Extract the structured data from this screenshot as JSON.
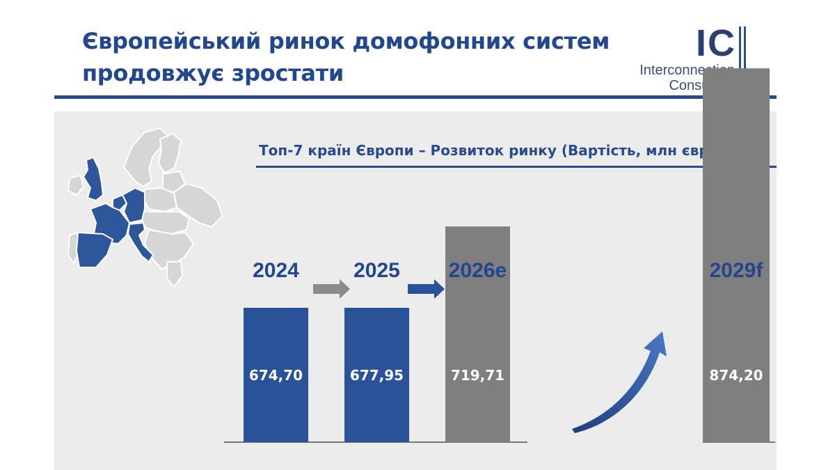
{
  "header": {
    "title_line1": "Європейський ринок домофонних систем",
    "title_line2": "продовжує зростати"
  },
  "logo": {
    "mark": "IC",
    "line1": "Interconnection",
    "line2": "Consulting"
  },
  "colors": {
    "accent": "#264b8f",
    "bar_actual": "#2a5298",
    "bar_forecast": "#7f7f7f",
    "panel": "#ececec",
    "map_land": "#d6d6d6",
    "map_highlight": "#2d579a"
  },
  "map": {
    "icon": "europe-map-icon",
    "highlighted_countries": [
      "United Kingdom",
      "France",
      "Germany",
      "Spain",
      "Italy",
      "Belgium",
      "Netherlands"
    ]
  },
  "chart_data": {
    "type": "bar",
    "title": "Топ-7 країн Європи – Розвиток ринку (Вартість, млн євро)",
    "categories": [
      "2024",
      "2025",
      "2026e",
      "2029f"
    ],
    "values": [
      674.7,
      677.95,
      719.71,
      874.2
    ],
    "value_labels": [
      "674,70",
      "677,95",
      "719,71",
      "874,20"
    ],
    "kinds": [
      "actual",
      "actual",
      "forecast",
      "forecast"
    ],
    "ylim": [
      0,
      900
    ],
    "grid": false,
    "legend": "none"
  }
}
